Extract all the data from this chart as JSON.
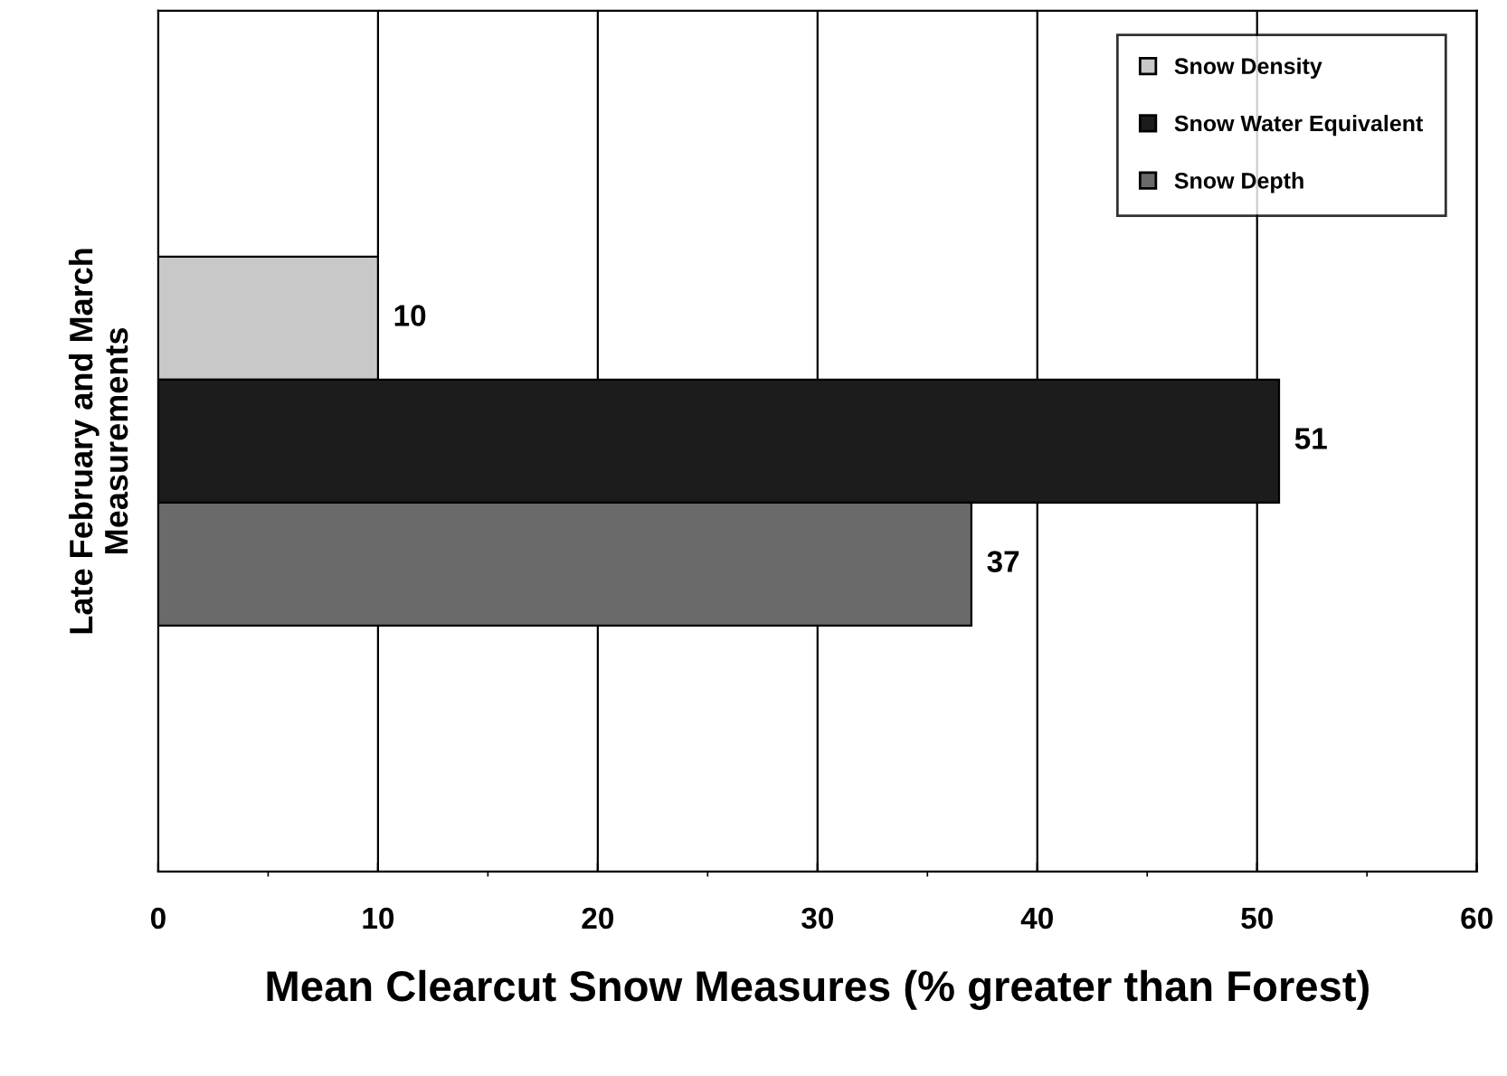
{
  "chart_data": {
    "type": "bar",
    "orientation": "horizontal",
    "categories": [
      null
    ],
    "series": [
      {
        "name": "Snow Density",
        "color": "#c8c8c8",
        "values": [
          10
        ]
      },
      {
        "name": "Snow Water Equivalent",
        "color": "#1c1c1c",
        "values": [
          51
        ]
      },
      {
        "name": "Snow Depth",
        "color": "#6a6a6a",
        "values": [
          37
        ]
      }
    ],
    "xlim": [
      0,
      60
    ],
    "xticks": [
      0,
      10,
      20,
      30,
      40,
      50,
      60
    ],
    "xlabel": "Mean Clearcut Snow Measures (% greater than Forest)",
    "ylabel": "Late February and March\nMeasurements",
    "grid": "x",
    "legend": "top right",
    "data_labels": true
  }
}
